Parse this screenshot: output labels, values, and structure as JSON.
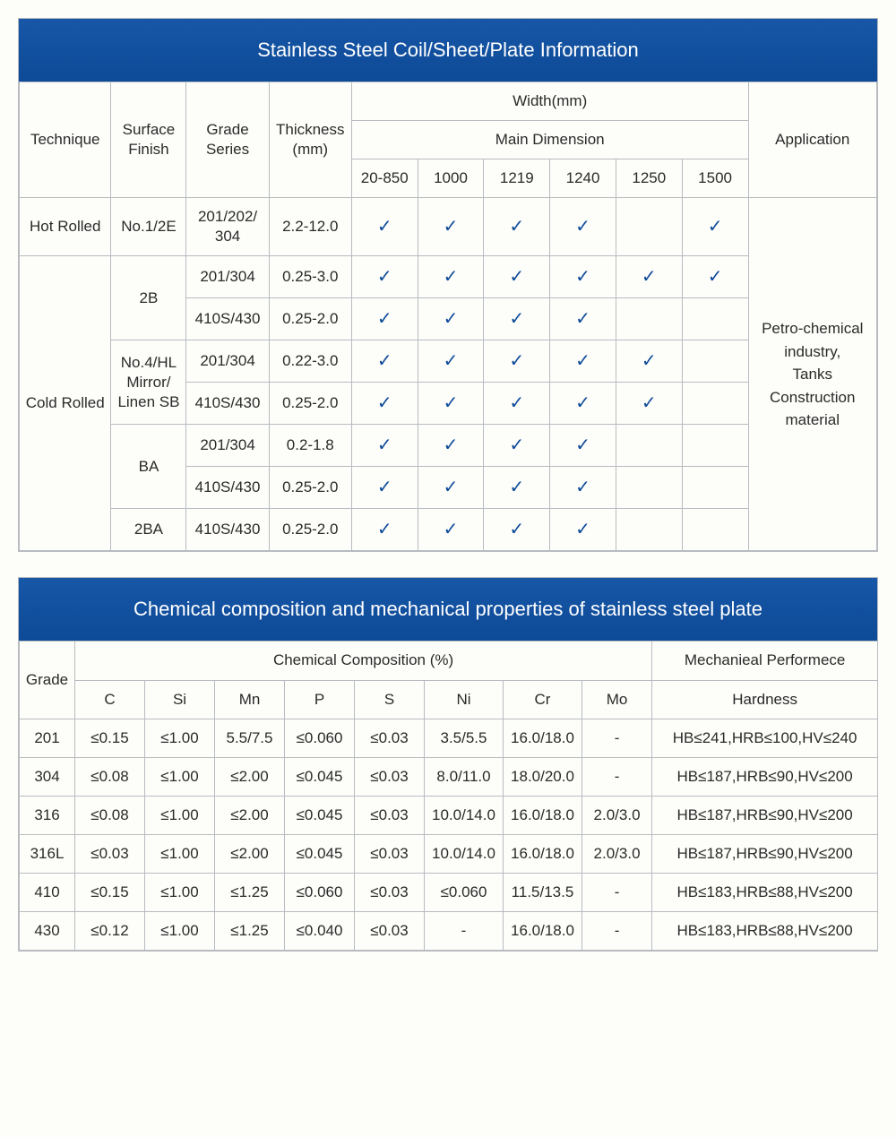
{
  "colors": {
    "header_bg_top": "#1757a6",
    "header_bg_bottom": "#0d4a98",
    "header_text": "#ffffff",
    "border": "#b8bbc0",
    "body_bg": "#fdfdfa",
    "text": "#2a2a2a",
    "check": "#0d4a98"
  },
  "typography": {
    "title_fontsize_pt": 17,
    "cell_fontsize_pt": 13
  },
  "table1": {
    "title": "Stainless Steel Coil/Sheet/Plate Information",
    "headers": {
      "technique": "Technique",
      "surface_finish": "Surface\nFinish",
      "grade_series": "Grade\nSeries",
      "thickness": "Thickness\n(mm)",
      "width_group": "Width(mm)",
      "main_dimension": "Main  Dimension",
      "application": "Application"
    },
    "width_cols": [
      "20-850",
      "1000",
      "1219",
      "1240",
      "1250",
      "1500"
    ],
    "application_text": "Petro-chemical\nindustry,\nTanks\nConstruction\nmaterial",
    "rows": [
      {
        "technique": "Hot Rolled",
        "surface": "No.1/2E",
        "grade": "201/202/\n304",
        "thickness": "2.2-12.0",
        "checks": [
          true,
          true,
          true,
          true,
          false,
          true
        ]
      },
      {
        "technique": "Cold Rolled",
        "surface": "2B",
        "grade": "201/304",
        "thickness": "0.25-3.0",
        "checks": [
          true,
          true,
          true,
          true,
          true,
          true
        ]
      },
      {
        "grade": "410S/430",
        "thickness": "0.25-2.0",
        "checks": [
          true,
          true,
          true,
          true,
          false,
          false
        ]
      },
      {
        "surface": "No.4/HL\nMirror/\nLinen SB",
        "grade": "201/304",
        "thickness": "0.22-3.0",
        "checks": [
          true,
          true,
          true,
          true,
          true,
          false
        ]
      },
      {
        "grade": "410S/430",
        "thickness": "0.25-2.0",
        "checks": [
          true,
          true,
          true,
          true,
          true,
          false
        ]
      },
      {
        "surface": "BA",
        "grade": "201/304",
        "thickness": "0.2-1.8",
        "checks": [
          true,
          true,
          true,
          true,
          false,
          false
        ]
      },
      {
        "grade": "410S/430",
        "thickness": "0.25-2.0",
        "checks": [
          true,
          true,
          true,
          true,
          false,
          false
        ]
      },
      {
        "surface": "2BA",
        "grade": "410S/430",
        "thickness": "0.25-2.0",
        "checks": [
          true,
          true,
          true,
          true,
          false,
          false
        ]
      }
    ]
  },
  "table2": {
    "title": "Chemical composition and mechanical properties of stainless steel plate",
    "headers": {
      "grade": "Grade",
      "chem_group": "Chemical Composition (%)",
      "mech_group": "Mechanieal Performece",
      "hardness": "Hardness"
    },
    "chem_cols": [
      "C",
      "Si",
      "Mn",
      "P",
      "S",
      "Ni",
      "Cr",
      "Mo"
    ],
    "rows": [
      {
        "grade": "201",
        "C": "≤0.15",
        "Si": "≤1.00",
        "Mn": "5.5/7.5",
        "P": "≤0.060",
        "S": "≤0.03",
        "Ni": "3.5/5.5",
        "Cr": "16.0/18.0",
        "Mo": "-",
        "hard": "HB≤241,HRB≤100,HV≤240"
      },
      {
        "grade": "304",
        "C": "≤0.08",
        "Si": "≤1.00",
        "Mn": "≤2.00",
        "P": "≤0.045",
        "S": "≤0.03",
        "Ni": "8.0/11.0",
        "Cr": "18.0/20.0",
        "Mo": "-",
        "hard": "HB≤187,HRB≤90,HV≤200"
      },
      {
        "grade": "316",
        "C": "≤0.08",
        "Si": "≤1.00",
        "Mn": "≤2.00",
        "P": "≤0.045",
        "S": "≤0.03",
        "Ni": "10.0/14.0",
        "Cr": "16.0/18.0",
        "Mo": "2.0/3.0",
        "hard": "HB≤187,HRB≤90,HV≤200"
      },
      {
        "grade": "316L",
        "C": "≤0.03",
        "Si": "≤1.00",
        "Mn": "≤2.00",
        "P": "≤0.045",
        "S": "≤0.03",
        "Ni": "10.0/14.0",
        "Cr": "16.0/18.0",
        "Mo": "2.0/3.0",
        "hard": "HB≤187,HRB≤90,HV≤200"
      },
      {
        "grade": "410",
        "C": "≤0.15",
        "Si": "≤1.00",
        "Mn": "≤1.25",
        "P": "≤0.060",
        "S": "≤0.03",
        "Ni": "≤0.060",
        "Cr": "11.5/13.5",
        "Mo": "-",
        "hard": "HB≤183,HRB≤88,HV≤200"
      },
      {
        "grade": "430",
        "C": "≤0.12",
        "Si": "≤1.00",
        "Mn": "≤1.25",
        "P": "≤0.040",
        "S": "≤0.03",
        "Ni": "-",
        "Cr": "16.0/18.0",
        "Mo": "-",
        "hard": "HB≤183,HRB≤88,HV≤200"
      }
    ]
  }
}
